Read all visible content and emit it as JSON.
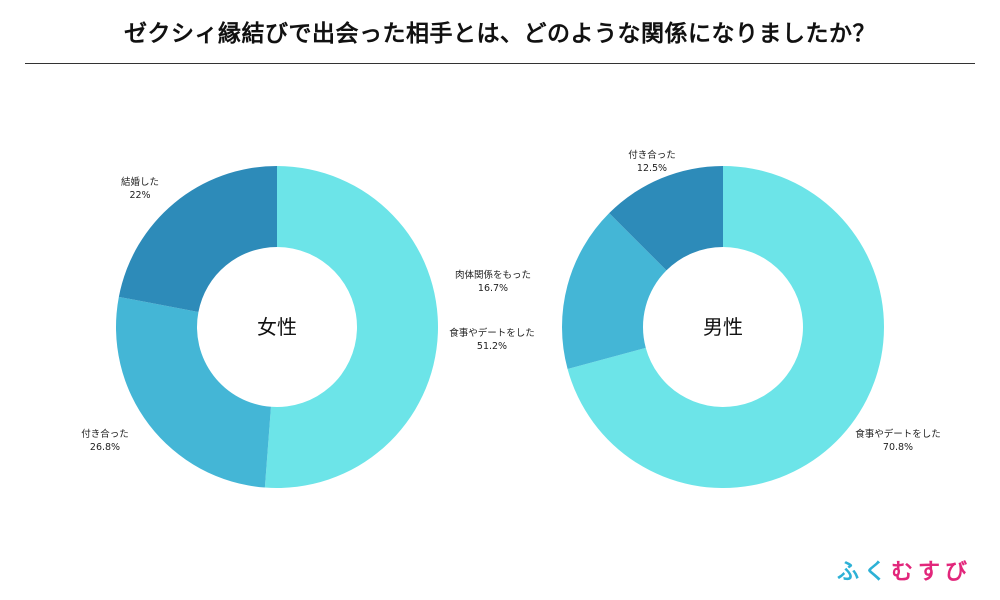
{
  "title": "ゼクシィ縁結びで出会った相手とは、どのような関係になりましたか？",
  "colors": {
    "slice_light": "#6ce4e8",
    "slice_mid": "#44b6d6",
    "slice_dark": "#2d8bb9",
    "logo_blue": "#2db1d6",
    "logo_pink": "#e2267b"
  },
  "logo": {
    "part1": "ふく",
    "part2": "むすび"
  },
  "chart_data": [
    {
      "type": "pie",
      "donut": true,
      "center_label": "女性",
      "slices": [
        {
          "label": "食事やデートをした",
          "value": 51.2,
          "value_label": "51.2%",
          "color": "#6ce4e8"
        },
        {
          "label": "付き合った",
          "value": 26.8,
          "value_label": "26.8%",
          "color": "#44b6d6"
        },
        {
          "label": "結婚した",
          "value": 22,
          "value_label": "22%",
          "color": "#2d8bb9"
        }
      ]
    },
    {
      "type": "pie",
      "donut": true,
      "center_label": "男性",
      "slices": [
        {
          "label": "食事やデートをした",
          "value": 70.8,
          "value_label": "70.8%",
          "color": "#6ce4e8"
        },
        {
          "label": "肉体関係をもった",
          "value": 16.7,
          "value_label": "16.7%",
          "color": "#44b6d6"
        },
        {
          "label": "付き合った",
          "value": 12.5,
          "value_label": "12.5%",
          "color": "#2d8bb9"
        }
      ]
    }
  ]
}
